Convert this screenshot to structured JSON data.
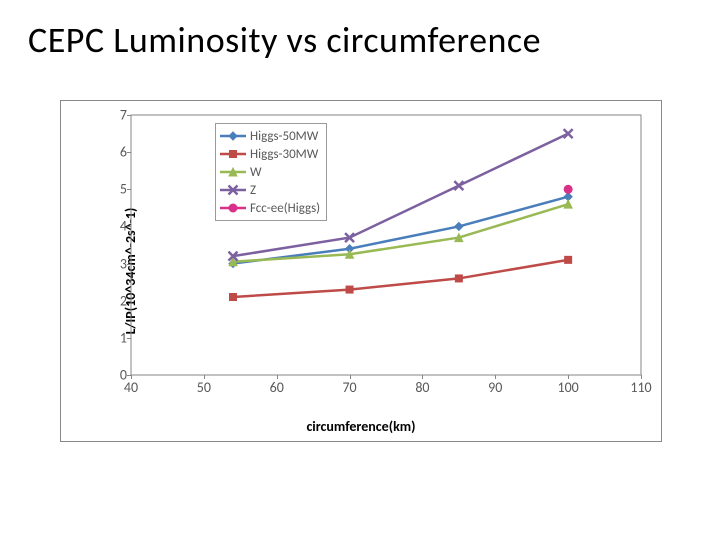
{
  "title": "CEPC Luminosity vs circumference",
  "chart": {
    "type": "line",
    "xlabel": "circumference(km)",
    "ylabel": "L/IP(10^34cm^-2s^-1)",
    "xlim": [
      40,
      110
    ],
    "ylim": [
      0,
      7
    ],
    "xtick_step": 10,
    "ytick_step": 1,
    "label_fontsize": 14,
    "tick_fontsize": 14,
    "background_color": "#ffffff",
    "axis_color": "#868686",
    "tick_color": "#595959",
    "plot_border": "1px solid #868686",
    "outer_border": "1px solid #888888",
    "legend_position": "top-left-inside",
    "legend_border": "#9a9a9a",
    "series": [
      {
        "name": "Higgs-50MW",
        "color": "#4a7ebb",
        "marker": "diamond",
        "marker_size": 8,
        "line_width": 2.5,
        "x": [
          54,
          70,
          85,
          100
        ],
        "y": [
          3.0,
          3.4,
          4.0,
          4.8
        ]
      },
      {
        "name": "Higgs-30MW",
        "color": "#be4b48",
        "marker": "square",
        "marker_size": 7,
        "line_width": 2.5,
        "x": [
          54,
          70,
          85,
          100
        ],
        "y": [
          2.1,
          2.3,
          2.6,
          3.1
        ]
      },
      {
        "name": "W",
        "color": "#98b954",
        "marker": "triangle",
        "marker_size": 8,
        "line_width": 2.5,
        "x": [
          54,
          70,
          85,
          100
        ],
        "y": [
          3.05,
          3.25,
          3.7,
          4.6
        ]
      },
      {
        "name": "Z",
        "color": "#7d60a0",
        "marker": "x",
        "marker_size": 9,
        "line_width": 2.5,
        "x": [
          54,
          70,
          85,
          100
        ],
        "y": [
          3.2,
          3.7,
          5.1,
          6.5
        ]
      },
      {
        "name": "Fcc-ee(Higgs)",
        "color": "#d9308a",
        "marker": "circle",
        "marker_size": 8,
        "line_width": 2.5,
        "x": [
          100
        ],
        "y": [
          5.0
        ]
      }
    ]
  }
}
